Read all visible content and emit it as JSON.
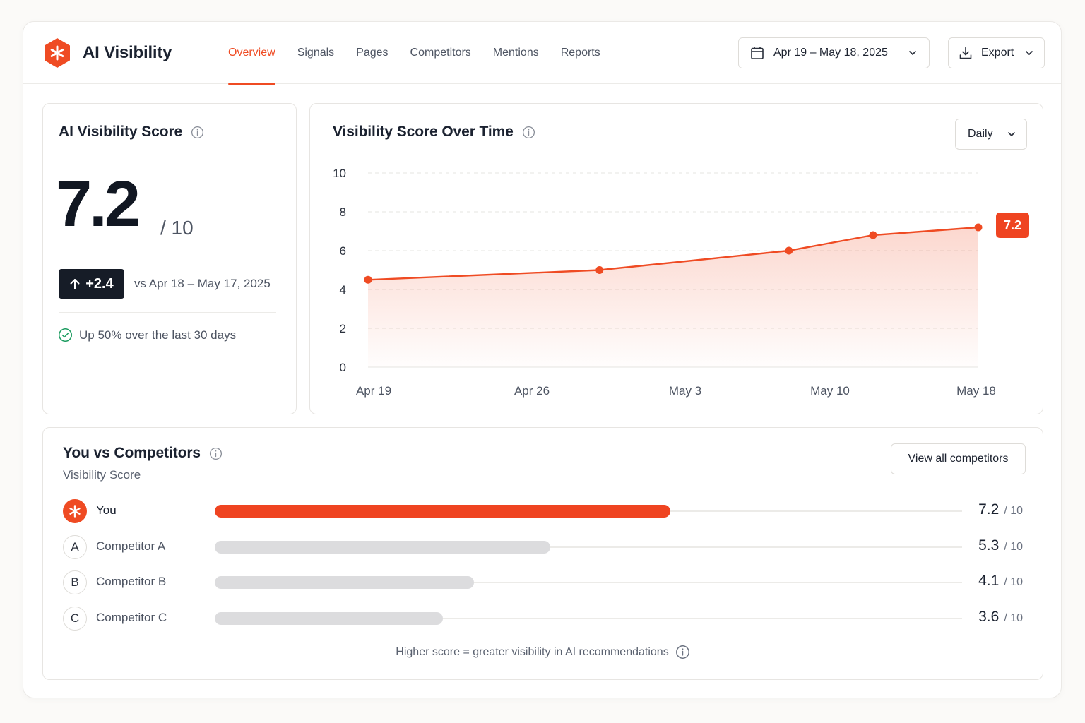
{
  "app": {
    "title": "AI Visibility",
    "logo_icon": "asterisk-hexagon-icon",
    "accent": "#ef4b23"
  },
  "nav": {
    "items": [
      {
        "label": "Overview",
        "active": true
      },
      {
        "label": "Signals",
        "active": false
      },
      {
        "label": "Pages",
        "active": false
      },
      {
        "label": "Competitors",
        "active": false
      },
      {
        "label": "Mentions",
        "active": false
      },
      {
        "label": "Reports",
        "active": false
      }
    ]
  },
  "toolbar": {
    "date_range": "Apr 19 – May 18, 2025",
    "export_label": "Export"
  },
  "score_card": {
    "title": "AI Visibility Score",
    "score": "7.2",
    "out_of": "/ 10",
    "delta": "+2.4",
    "compare_period": "vs Apr 18 – May 17, 2025",
    "trend_text": "Up 50% over the last 30 days",
    "trend_color": "#1f9d62"
  },
  "chart_card": {
    "title": "Visibility Score Over Time",
    "granularity": "Daily",
    "latest_label": "7.2"
  },
  "chart_data": {
    "type": "area",
    "title": "Visibility Score Over Time",
    "x_ticks": [
      "Apr 19",
      "Apr 26",
      "May 3",
      "May 10",
      "May 18"
    ],
    "y_ticks": [
      "0",
      "2",
      "4",
      "6",
      "8",
      "10"
    ],
    "ylim": [
      0,
      10
    ],
    "grid": true,
    "series": [
      {
        "points": [
          {
            "date": "2025-04-19",
            "value": 4.5
          },
          {
            "date": "2025-04-30",
            "value": 5.0
          },
          {
            "date": "2025-05-09",
            "value": 6.0
          },
          {
            "date": "2025-05-13",
            "value": 6.8
          },
          {
            "date": "2025-05-18",
            "value": 7.2
          }
        ],
        "color": "#ef4b23"
      }
    ]
  },
  "competitors": {
    "title": "You vs Competitors",
    "subtitle": "Visibility Score",
    "view_all_label": "View all competitors",
    "out_of": "/ 10",
    "rows": [
      {
        "badge": "",
        "name": "You",
        "score": "7.2",
        "value": 7.2,
        "is_you": true
      },
      {
        "badge": "A",
        "name": "Competitor A",
        "score": "5.3",
        "value": 5.3,
        "is_you": false
      },
      {
        "badge": "B",
        "name": "Competitor B",
        "score": "4.1",
        "value": 4.1,
        "is_you": false
      },
      {
        "badge": "C",
        "name": "Competitor C",
        "score": "3.6",
        "value": 3.6,
        "is_you": false
      }
    ],
    "footer": "Higher score = greater visibility in AI recommendations"
  }
}
